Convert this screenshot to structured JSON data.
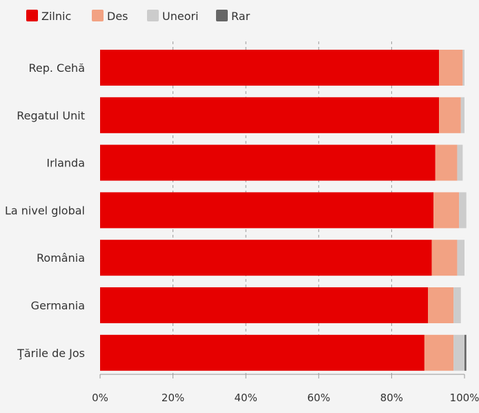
{
  "chart_data": {
    "type": "bar",
    "orientation": "horizontal",
    "stacked": true,
    "categories": [
      "Rep. Cehă",
      "Regatul Unit",
      "Irlanda",
      "La nivel global",
      "România",
      "Germania",
      "Ţările de Jos"
    ],
    "series": [
      {
        "name": "Zilnic",
        "color": "#e60000",
        "values": [
          93,
          93,
          92,
          91.5,
          91,
          90,
          89
        ]
      },
      {
        "name": "Des",
        "color": "#f2a283",
        "values": [
          6.5,
          6,
          6,
          7,
          7,
          7,
          8
        ]
      },
      {
        "name": "Uneori",
        "color": "#cccccc",
        "values": [
          0.5,
          1,
          1.5,
          2,
          2,
          2,
          3
        ]
      },
      {
        "name": "Rar",
        "color": "#666666",
        "values": [
          0,
          0,
          0,
          0,
          0,
          0,
          0.5
        ]
      }
    ],
    "xlim": [
      0,
      100
    ],
    "xticks": [
      "0%",
      "20%",
      "40%",
      "60%",
      "80%",
      "100%"
    ],
    "grid": "vertical-dashed",
    "legend": "top-left",
    "xlabel": "",
    "ylabel": "",
    "title": ""
  }
}
